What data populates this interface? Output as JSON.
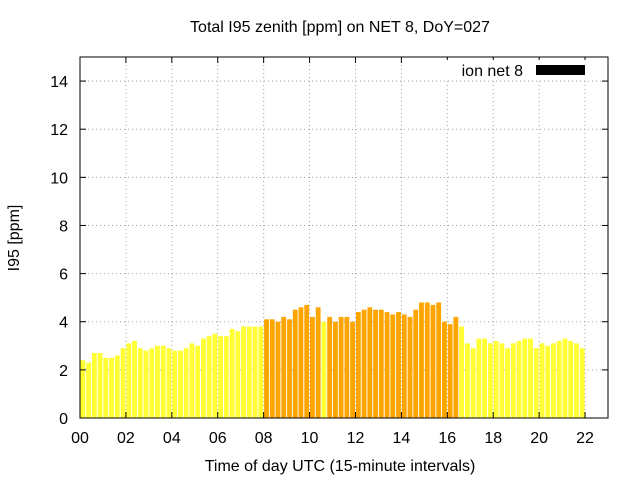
{
  "chart_data": {
    "type": "bar",
    "title": "Total I95 zenith [ppm] on NET 8, DoY=027",
    "xlabel": "Time of day UTC (15-minute intervals)",
    "ylabel": "I95 [ppm]",
    "ylim": [
      0,
      15
    ],
    "xlim": [
      0,
      23
    ],
    "yticks": [
      "0",
      "2",
      "4",
      "6",
      "8",
      "10",
      "12",
      "14"
    ],
    "xticks": [
      "00",
      "02",
      "04",
      "06",
      "08",
      "10",
      "12",
      "14",
      "16",
      "18",
      "20",
      "22"
    ],
    "grid": true,
    "legend": {
      "label": "ion net 8",
      "color": "#000000",
      "position": "top-right"
    },
    "colors": {
      "yellow": "#ffff33",
      "orange": "#ffa500"
    },
    "bar_interval_hours": 0.25,
    "series": [
      {
        "x_start": 0.0,
        "values": [
          2.4,
          2.3,
          2.7,
          2.7,
          2.5,
          2.5,
          2.6,
          2.9,
          3.1,
          3.2,
          2.9,
          2.8,
          2.9,
          3.0,
          3.0,
          2.9,
          2.8,
          2.8,
          2.9,
          3.1,
          3.0,
          3.3,
          3.4,
          3.5,
          3.4,
          3.4,
          3.7,
          3.6,
          3.8,
          3.8,
          3.8,
          3.8
        ],
        "colors": [
          "yellow",
          "yellow",
          "yellow",
          "yellow",
          "yellow",
          "yellow",
          "yellow",
          "yellow",
          "yellow",
          "yellow",
          "yellow",
          "yellow",
          "yellow",
          "yellow",
          "yellow",
          "yellow",
          "yellow",
          "yellow",
          "yellow",
          "yellow",
          "yellow",
          "yellow",
          "yellow",
          "yellow",
          "yellow",
          "yellow",
          "yellow",
          "yellow",
          "yellow",
          "yellow",
          "yellow",
          "yellow"
        ]
      },
      {
        "x_start": 8.0,
        "values": [
          4.1,
          4.1,
          4.0,
          4.2,
          4.1,
          4.5,
          4.6,
          4.7,
          4.2,
          4.6,
          4.0,
          4.2,
          4.0,
          4.2,
          4.2,
          4.0,
          4.4,
          4.5,
          4.6,
          4.5,
          4.5,
          4.4,
          4.3,
          4.4,
          4.3,
          4.2,
          4.5,
          4.8,
          4.8,
          4.7,
          4.8,
          4.0,
          3.9,
          4.2
        ],
        "colors": [
          "orange",
          "orange",
          "orange",
          "orange",
          "orange",
          "orange",
          "orange",
          "orange",
          "orange",
          "orange",
          "yellow",
          "orange",
          "orange",
          "orange",
          "orange",
          "orange",
          "orange",
          "orange",
          "orange",
          "orange",
          "orange",
          "orange",
          "orange",
          "orange",
          "orange",
          "orange",
          "orange",
          "orange",
          "orange",
          "orange",
          "orange",
          "orange",
          "orange",
          "orange"
        ]
      },
      {
        "x_start": 16.5,
        "values": [
          3.8,
          3.1,
          2.9,
          3.3,
          3.3,
          3.1,
          3.2,
          3.1,
          2.9,
          3.1,
          3.2,
          3.3,
          3.3,
          2.9,
          3.1,
          3.0,
          3.1,
          3.2,
          3.3,
          3.2,
          3.1,
          2.9
        ],
        "colors": [
          "yellow",
          "yellow",
          "yellow",
          "yellow",
          "yellow",
          "yellow",
          "yellow",
          "yellow",
          "yellow",
          "yellow",
          "yellow",
          "yellow",
          "yellow",
          "yellow",
          "yellow",
          "yellow",
          "yellow",
          "yellow",
          "yellow",
          "yellow",
          "yellow",
          "yellow"
        ]
      }
    ]
  }
}
